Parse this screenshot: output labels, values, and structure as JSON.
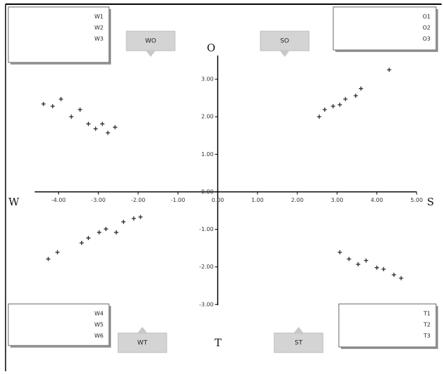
{
  "chart_data": {
    "type": "scatter",
    "axis_labels": {
      "left": "W",
      "right": "S",
      "top": "O",
      "bottom": "T"
    },
    "xlim": [
      -4.6,
      5.0
    ],
    "ylim": [
      -3.3,
      4.0
    ],
    "xticks": [
      {
        "value": -4,
        "label": "-4.00"
      },
      {
        "value": -3,
        "label": "-3.00"
      },
      {
        "value": -2,
        "label": "-2.00"
      },
      {
        "value": -1,
        "label": "-1.00"
      },
      {
        "value": 0,
        "label": "0.00"
      },
      {
        "value": 1,
        "label": "1.00"
      },
      {
        "value": 2,
        "label": "2.00"
      },
      {
        "value": 3,
        "label": "3.00"
      },
      {
        "value": 4,
        "label": "4.00"
      },
      {
        "value": 5,
        "label": "5.00"
      }
    ],
    "yticks": [
      {
        "value": 3,
        "label": "3.00"
      },
      {
        "value": 2,
        "label": "2.00"
      },
      {
        "value": 1,
        "label": "1.00"
      },
      {
        "value": 0,
        "label": "0.00"
      },
      {
        "value": -1,
        "label": "-1.00"
      },
      {
        "value": -2,
        "label": "-2.00"
      },
      {
        "value": -3,
        "label": "-3.00"
      }
    ],
    "series": [
      {
        "color": "#333333",
        "x": [
          -4.38,
          -4.15,
          -3.94,
          -3.68,
          -3.46,
          -3.25,
          -3.07,
          -2.9,
          -2.76,
          -2.58
        ],
        "values": [
          2.34,
          2.28,
          2.47,
          2.0,
          2.19,
          1.81,
          1.68,
          1.81,
          1.57,
          1.72
        ]
      },
      {
        "color": "#333333",
        "x": [
          2.55,
          2.69,
          2.9,
          3.07,
          3.21,
          3.47,
          3.6,
          4.31
        ],
        "values": [
          2.0,
          2.19,
          2.28,
          2.32,
          2.47,
          2.56,
          2.75,
          3.25
        ]
      },
      {
        "color": "#333333",
        "x": [
          -4.26,
          -4.03,
          -3.42,
          -3.25,
          -2.98,
          -2.81,
          -2.55,
          -2.37,
          -2.11,
          -1.94
        ],
        "values": [
          -1.79,
          -1.61,
          -1.36,
          -1.23,
          -1.08,
          -0.99,
          -1.08,
          -0.8,
          -0.71,
          -0.67
        ]
      },
      {
        "color": "#333333",
        "x": [
          3.07,
          3.3,
          3.53,
          3.73,
          4.0,
          4.17,
          4.43,
          4.61
        ],
        "values": [
          -1.61,
          -1.79,
          -1.93,
          -1.83,
          -2.02,
          -2.06,
          -2.21,
          -2.3
        ]
      }
    ],
    "boxes": [
      {
        "corner": "top-left",
        "lines": [
          "W1",
          "W2",
          "W3"
        ]
      },
      {
        "corner": "top-right",
        "lines": [
          "O1",
          "O2",
          "O3"
        ]
      },
      {
        "corner": "bottom-left",
        "lines": [
          "W4",
          "W5",
          "W6"
        ]
      },
      {
        "corner": "bottom-right",
        "lines": [
          "T1",
          "T2",
          "T3"
        ]
      }
    ],
    "tabs": [
      {
        "corner": "top-left",
        "label": "WO"
      },
      {
        "corner": "top-right",
        "label": "SO"
      },
      {
        "corner": "bottom-left",
        "label": "WT"
      },
      {
        "corner": "bottom-right",
        "label": "ST"
      }
    ]
  }
}
